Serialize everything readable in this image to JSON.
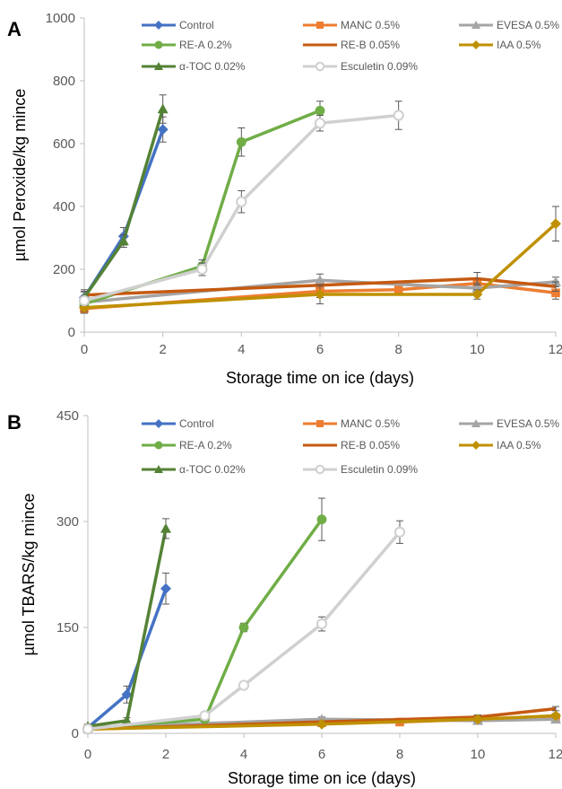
{
  "chart_data": [
    {
      "panel": "A",
      "type": "line",
      "xlabel": "Storage time on ice (days)",
      "ylabel": "µmol Peroxide/kg mince",
      "xlim": [
        0,
        12
      ],
      "ylim": [
        0,
        1000
      ],
      "xticks": [
        0,
        2,
        4,
        6,
        8,
        10,
        12
      ],
      "yticks": [
        0,
        200,
        400,
        600,
        800,
        1000
      ],
      "grid": false,
      "legend": "top",
      "series": [
        {
          "name": "Control",
          "color": "#4472C4",
          "marker": "diamond",
          "x": [
            0,
            1,
            2
          ],
          "y": [
            110,
            305,
            645
          ],
          "err": [
            25,
            28,
            40
          ]
        },
        {
          "name": "MANC 0.5%",
          "color": "#ED7D31",
          "marker": "square",
          "x": [
            0,
            6,
            8,
            10,
            12
          ],
          "y": [
            75,
            130,
            135,
            155,
            125
          ],
          "err": [
            15,
            20,
            10,
            15,
            20
          ]
        },
        {
          "name": "EVESA 0.5%",
          "color": "#A5A5A5",
          "marker": "triangle",
          "x": [
            0,
            6,
            10,
            12
          ],
          "y": [
            95,
            165,
            140,
            160
          ],
          "err": [
            15,
            20,
            15,
            15
          ]
        },
        {
          "name": "RE-A 0.2%",
          "color": "#70AD47",
          "marker": "circle",
          "x": [
            0,
            3,
            4,
            6
          ],
          "y": [
            90,
            210,
            605,
            705
          ],
          "err": [
            15,
            20,
            45,
            30
          ]
        },
        {
          "name": "RE-B 0.05%",
          "color": "#C55A11",
          "marker": "none",
          "x": [
            0,
            10,
            12
          ],
          "y": [
            118,
            170,
            145
          ],
          "err": [
            10,
            20,
            15
          ]
        },
        {
          "name": "IAA 0.5%",
          "color": "#BF9000",
          "marker": "diamond",
          "x": [
            0,
            6,
            10,
            12
          ],
          "y": [
            78,
            120,
            120,
            345
          ],
          "err": [
            12,
            30,
            15,
            55
          ]
        },
        {
          "name": "α-TOC 0.02%",
          "color": "#548235",
          "marker": "triangle",
          "x": [
            0,
            1,
            2
          ],
          "y": [
            110,
            290,
            710
          ],
          "err": [
            20,
            20,
            45
          ]
        },
        {
          "name": "Esculetin  0.09%",
          "color": "#D0D0D0",
          "marker": "open-circle",
          "x": [
            0,
            3,
            4,
            6,
            8
          ],
          "y": [
            100,
            200,
            415,
            665,
            690
          ],
          "err": [
            15,
            20,
            35,
            25,
            45
          ]
        }
      ]
    },
    {
      "panel": "B",
      "type": "line",
      "xlabel": "Storage time on ice (days)",
      "ylabel": "µmol TBARS/kg mince",
      "xlim": [
        0,
        12
      ],
      "ylim": [
        0,
        450
      ],
      "xticks": [
        0,
        2,
        4,
        6,
        8,
        10,
        12
      ],
      "yticks": [
        0,
        150,
        300,
        450
      ],
      "grid": false,
      "legend": "top",
      "series": [
        {
          "name": "Control",
          "color": "#4472C4",
          "marker": "diamond",
          "x": [
            0,
            1,
            2
          ],
          "y": [
            8,
            55,
            205
          ],
          "err": [
            3,
            12,
            22
          ]
        },
        {
          "name": "MANC 0.5%",
          "color": "#ED7D31",
          "marker": "square",
          "x": [
            0,
            6,
            8,
            10,
            12
          ],
          "y": [
            6,
            15,
            16,
            20,
            22
          ],
          "err": [
            2,
            3,
            3,
            3,
            3
          ]
        },
        {
          "name": "EVESA 0.5%",
          "color": "#A5A5A5",
          "marker": "triangle",
          "x": [
            0,
            6,
            10,
            12
          ],
          "y": [
            8,
            20,
            18,
            20
          ],
          "err": [
            2,
            3,
            3,
            3
          ]
        },
        {
          "name": "RE-A 0.2%",
          "color": "#70AD47",
          "marker": "circle",
          "x": [
            0,
            3,
            4,
            6
          ],
          "y": [
            7,
            20,
            150,
            303
          ],
          "err": [
            2,
            3,
            6,
            30
          ]
        },
        {
          "name": "RE-B 0.05%",
          "color": "#C55A11",
          "marker": "none",
          "x": [
            0,
            10,
            12
          ],
          "y": [
            6,
            23,
            35
          ],
          "err": [
            2,
            3,
            3
          ]
        },
        {
          "name": "IAA 0.5%",
          "color": "#BF9000",
          "marker": "diamond",
          "x": [
            0,
            6,
            10,
            12
          ],
          "y": [
            6,
            13,
            20,
            25
          ],
          "err": [
            2,
            3,
            3,
            3
          ]
        },
        {
          "name": "α-TOC 0.02%",
          "color": "#548235",
          "marker": "triangle",
          "x": [
            0,
            1,
            2
          ],
          "y": [
            10,
            18,
            290
          ],
          "err": [
            3,
            4,
            14
          ]
        },
        {
          "name": "Esculetin  0.09%",
          "color": "#D0D0D0",
          "marker": "open-circle",
          "x": [
            0,
            3,
            4,
            6,
            8
          ],
          "y": [
            6,
            25,
            68,
            155,
            285
          ],
          "err": [
            2,
            4,
            5,
            10,
            16
          ]
        }
      ]
    }
  ]
}
